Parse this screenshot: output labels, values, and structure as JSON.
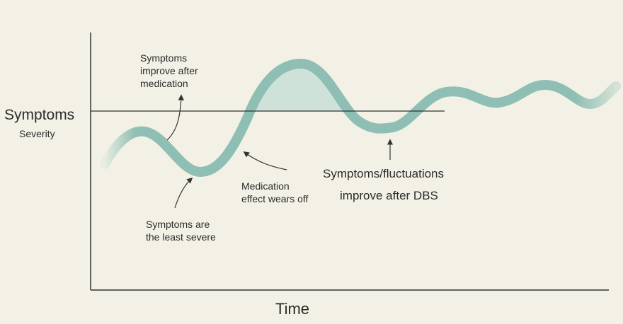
{
  "axes": {
    "y_label": "Symptoms",
    "y_sublabel": "Severity",
    "x_label": "Time"
  },
  "annotations": [
    {
      "lines": [
        "Symptoms",
        "improve after",
        "medication"
      ]
    },
    {
      "lines": [
        "Symptoms are",
        "the least severe"
      ]
    },
    {
      "lines": [
        "Medication",
        "effect wears off"
      ]
    },
    {
      "lines": [
        "Symptoms/fluctuations",
        "improve after DBS"
      ]
    }
  ]
}
